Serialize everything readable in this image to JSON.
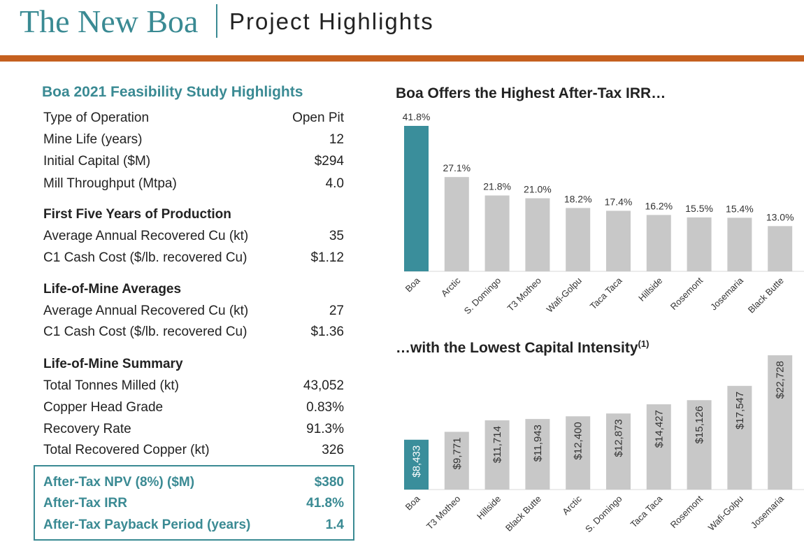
{
  "header": {
    "brand": "The New Boa",
    "subtitle": "Project Highlights"
  },
  "highlights": {
    "title": "Boa 2021 Feasibility Study Highlights",
    "general": [
      {
        "label": "Type of Operation",
        "value": "Open Pit"
      },
      {
        "label": "Mine Life (years)",
        "value": "12"
      },
      {
        "label": "Initial Capital ($M)",
        "value": "$294"
      },
      {
        "label": "Mill Throughput (Mtpa)",
        "value": "4.0"
      }
    ],
    "first_five": {
      "heading": "First Five Years of Production",
      "rows": [
        {
          "label": "Average Annual Recovered Cu (kt)",
          "value": "35"
        },
        {
          "label": "C1 Cash Cost ($/lb. recovered Cu)",
          "value": "$1.12"
        }
      ]
    },
    "lom_averages": {
      "heading": "Life-of-Mine Averages",
      "rows": [
        {
          "label": "Average Annual Recovered Cu (kt)",
          "value": "27"
        },
        {
          "label": "C1 Cash Cost ($/lb. recovered Cu)",
          "value": "$1.36"
        }
      ]
    },
    "lom_summary": {
      "heading": "Life-of-Mine Summary",
      "rows": [
        {
          "label": "Total Tonnes Milled (kt)",
          "value": "43,052"
        },
        {
          "label": "Copper Head Grade",
          "value": "0.83%"
        },
        {
          "label": "Recovery Rate",
          "value": "91.3%"
        },
        {
          "label": "Total Recovered Copper (kt)",
          "value": "326"
        }
      ]
    },
    "key_metrics": [
      {
        "label": "After-Tax NPV (8%) ($M)",
        "value": "$380"
      },
      {
        "label": "After-Tax IRR",
        "value": "41.8%"
      },
      {
        "label": "After-Tax Payback Period (years)",
        "value": "1.4"
      }
    ]
  },
  "colors": {
    "accent": "#3a8a93",
    "rule": "#c5601f",
    "bar_grey": "#c8c8c8",
    "bar_highlight": "#3a8e9b"
  },
  "chart_data": [
    {
      "type": "bar",
      "title": "Boa Offers the Highest After-Tax IRR…",
      "title_sup": "",
      "categories": [
        "Boa",
        "Arctic",
        "S. Domingo",
        "T3 Motheo",
        "Wafi-Golpu",
        "Taca Taca",
        "Hillside",
        "Rosemont",
        "Josemaria",
        "Black Butte"
      ],
      "values": [
        41.8,
        27.1,
        21.8,
        21.0,
        18.2,
        17.4,
        16.2,
        15.5,
        15.4,
        13.0
      ],
      "data_labels": [
        "41.8%",
        "27.1%",
        "21.8%",
        "21.0%",
        "18.2%",
        "17.4%",
        "16.2%",
        "15.5%",
        "15.4%",
        "13.0%"
      ],
      "highlight_index": 0,
      "ylim": [
        0,
        41.8
      ],
      "label_position": "above",
      "grid": false
    },
    {
      "type": "bar",
      "title": "…with the Lowest Capital Intensity",
      "title_sup": "(1)",
      "categories": [
        "Boa",
        "T3 Motheo",
        "Hillside",
        "Black Butte",
        "Arctic",
        "S. Domingo",
        "Taca Taca",
        "Rosemont",
        "Wafi-Golpu",
        "Josemaria"
      ],
      "values": [
        8433,
        9771,
        11714,
        11943,
        12400,
        12873,
        14427,
        15126,
        17547,
        22728
      ],
      "data_labels": [
        "$8,433",
        "$9,771",
        "$11,714",
        "$11,943",
        "$12,400",
        "$12,873",
        "$14,427",
        "$15,126",
        "$17,547",
        "$22,728"
      ],
      "highlight_index": 0,
      "ylim": [
        0,
        22728
      ],
      "label_position": "inside-vertical",
      "grid": false
    }
  ]
}
